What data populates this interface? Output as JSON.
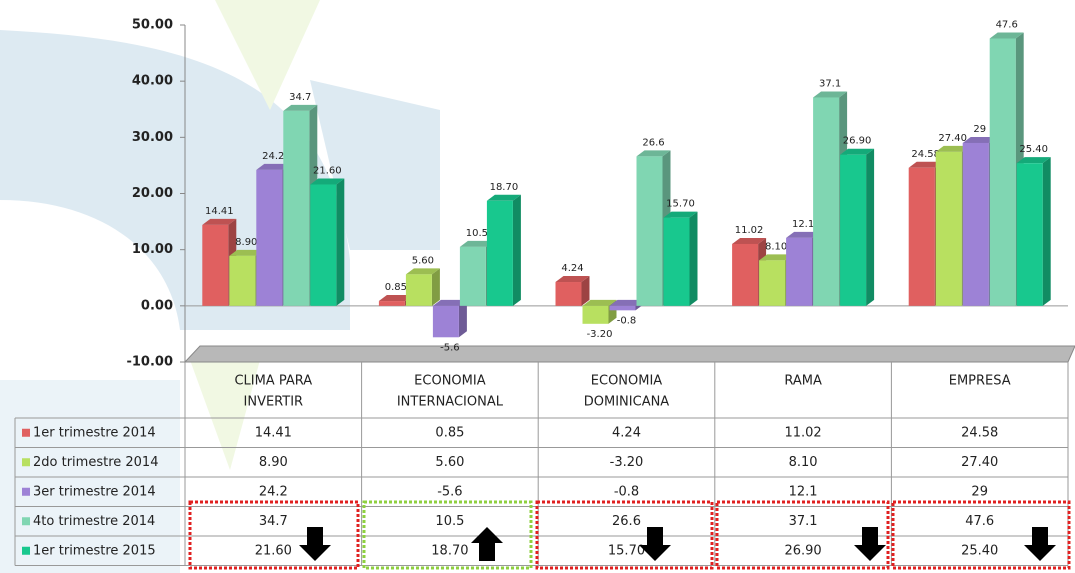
{
  "chart_data": {
    "type": "bar",
    "categories": [
      [
        "CLIMA PARA",
        "INVERTIR"
      ],
      [
        "ECONOMIA",
        "INTERNACIONAL"
      ],
      [
        "ECONOMIA",
        "DOMINICANA"
      ],
      [
        "RAMA"
      ],
      [
        "EMPRESA"
      ]
    ],
    "series": [
      {
        "name": "1er trimestre 2014",
        "color": "#e06060",
        "values": [
          14.41,
          0.85,
          4.24,
          11.02,
          24.58
        ]
      },
      {
        "name": "2do trimestre 2014",
        "color": "#b8e060",
        "values": [
          8.9,
          5.6,
          -3.2,
          8.1,
          27.4
        ],
        "value_labels": [
          "8.90",
          "5.60",
          "-3.20",
          "8.10",
          "27.40"
        ]
      },
      {
        "name": "3er trimestre 2014",
        "color": "#9d82d6",
        "values": [
          24.2,
          -5.6,
          -0.8,
          12.1,
          29
        ]
      },
      {
        "name": "4to trimestre 2014",
        "color": "#80d6b2",
        "values": [
          34.7,
          10.5,
          26.6,
          37.1,
          47.6
        ]
      },
      {
        "name": "1er trimestre 2015",
        "color": "#18c88e",
        "values": [
          21.6,
          18.7,
          15.7,
          26.9,
          25.4
        ],
        "value_labels": [
          "21.60",
          "18.70",
          "15.70",
          "26.90",
          "25.40"
        ]
      }
    ],
    "ylim": [
      -10,
      50
    ],
    "yticks": [
      {
        "value": -10,
        "label": "-10.00"
      },
      {
        "value": 0,
        "label": "0.00"
      },
      {
        "value": 10,
        "label": "10.00"
      },
      {
        "value": 20,
        "label": "20.00"
      },
      {
        "value": 30,
        "label": "30.00"
      },
      {
        "value": 40,
        "label": "40.00"
      },
      {
        "value": 50,
        "label": "50.00"
      }
    ]
  }
}
